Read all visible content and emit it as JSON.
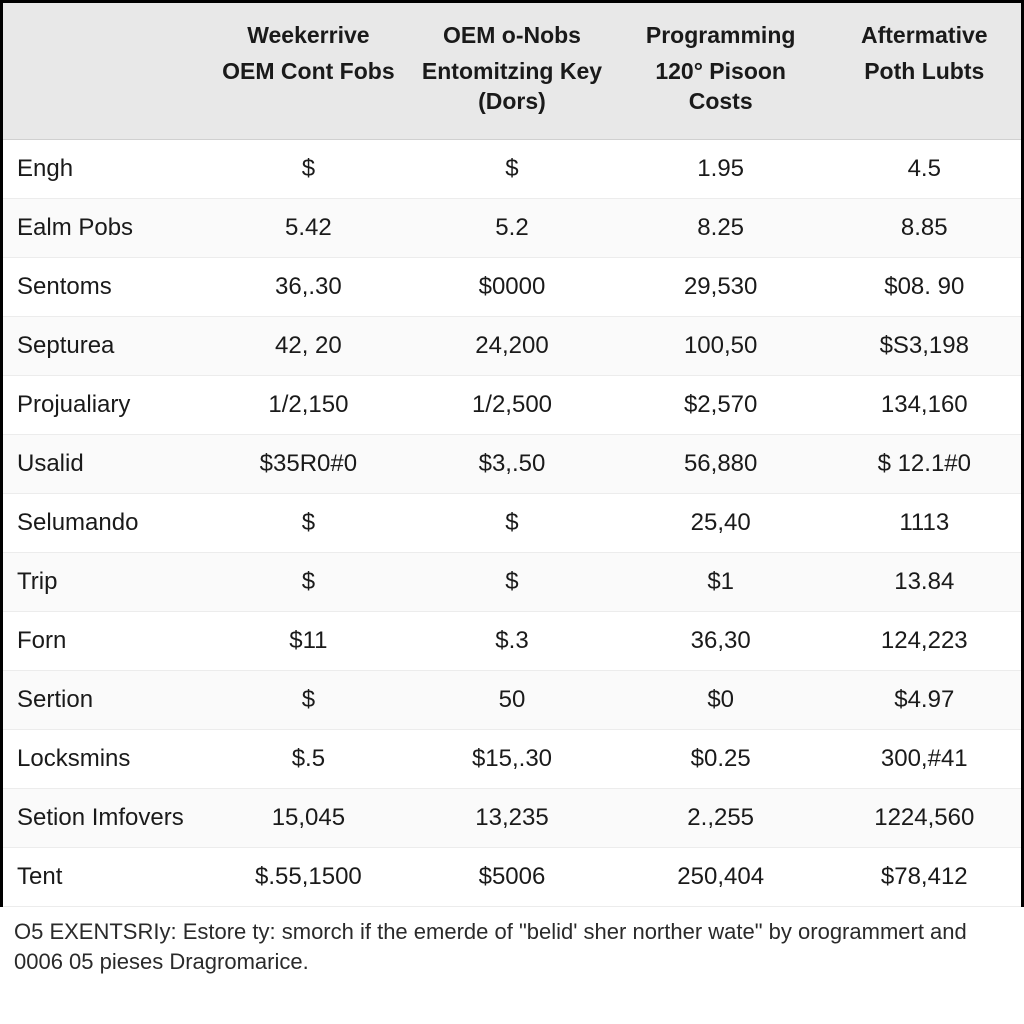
{
  "table": {
    "columns": [
      {
        "line1": "",
        "line2": ""
      },
      {
        "line1": "Weekerrive",
        "line2": "OEM Cont Fobs"
      },
      {
        "line1": "OEM o-Nobs",
        "line2": "Entomitzing Key (Dors)"
      },
      {
        "line1": "Programming",
        "line2": "120° Pisoon Costs"
      },
      {
        "line1": "Aftermative",
        "line2": "Poth Lubts"
      }
    ],
    "rows": [
      {
        "label": "Engh",
        "c1": "$",
        "c2": "$",
        "c3": "1.95",
        "c4": "4.5"
      },
      {
        "label": "Ealm Pobs",
        "c1": "5.42",
        "c2": "5.2",
        "c3": "8.25",
        "c4": "8.85"
      },
      {
        "label": "Sentoms",
        "c1": "36,.30",
        "c2": "$0000",
        "c3": "29,530",
        "c4": "$08. 90"
      },
      {
        "label": "Septurea",
        "c1": "42, 20",
        "c2": "24,200",
        "c3": "100,50",
        "c4": "$S3,198"
      },
      {
        "label": "Projualiary",
        "c1": "1/2,150",
        "c2": "1/2,500",
        "c3": "$2,570",
        "c4": "134,160"
      },
      {
        "label": "Usalid",
        "c1": "$35R0#0",
        "c2": "$3,.50",
        "c3": "56,880",
        "c4": "$ 12.1#0"
      },
      {
        "label": "Selumando",
        "c1": "$",
        "c2": "$",
        "c3": "25,40",
        "c4": "1113"
      },
      {
        "label": "Trip",
        "c1": "$",
        "c2": "$",
        "c3": "$1",
        "c4": "13.84"
      },
      {
        "label": "Forn",
        "c1": "$11",
        "c2": "$.3",
        "c3": "36,30",
        "c4": "124,223"
      },
      {
        "label": "Sertion",
        "c1": "$",
        "c2": "50",
        "c3": "$0",
        "c4": "$4.97"
      },
      {
        "label": "Locksmins",
        "c1": "$.5",
        "c2": "$15,.30",
        "c3": "$0.25",
        "c4": "300,#41"
      },
      {
        "label": "Setion Imfovers",
        "c1": "15,045",
        "c2": "13,235",
        "c3": "2.,255",
        "c4": "1224,560"
      },
      {
        "label": "Tent",
        "c1": "$.55,1500",
        "c2": "$5006",
        "c3": "250,404",
        "c4": "$78,412"
      }
    ],
    "header_bg": "#e8e8e8",
    "row_even_bg": "#fafafa",
    "row_odd_bg": "#ffffff",
    "border_color": "#000000",
    "grid_color": "#ececec",
    "text_color": "#1a1a1a",
    "header_fontsize": 23,
    "cell_fontsize": 24
  },
  "footer": {
    "text": "O5 EXENTSRIy: Estore ty: smorch if the emerde of \"belid' sher norther wate\" by orogrammert and 0006 05 pieses Dragromarice."
  }
}
